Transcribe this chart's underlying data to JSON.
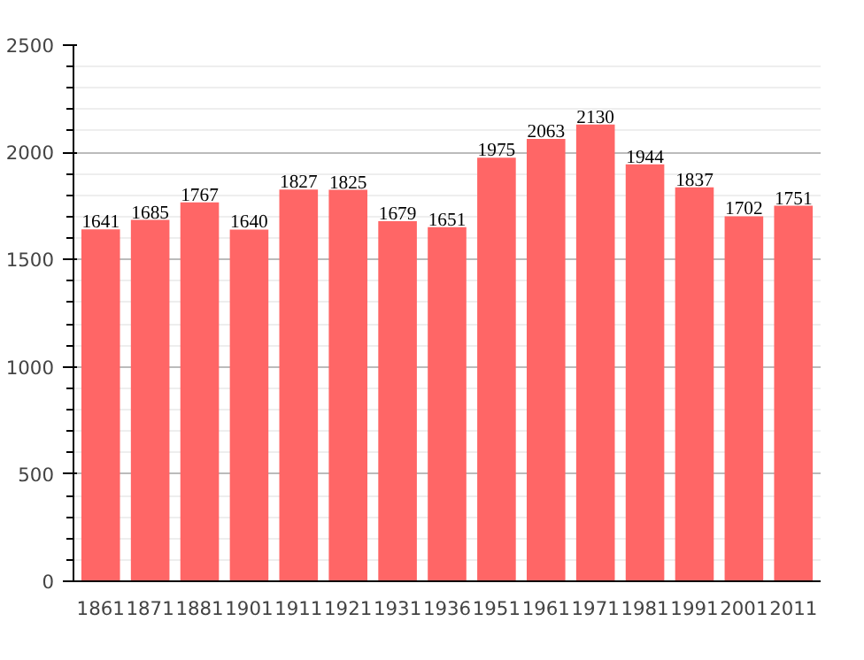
{
  "chart_data": {
    "type": "bar",
    "categories": [
      "1861",
      "1871",
      "1881",
      "1901",
      "1911",
      "1921",
      "1931",
      "1936",
      "1951",
      "1961",
      "1971",
      "1981",
      "1991",
      "2001",
      "2011"
    ],
    "values": [
      1641,
      1685,
      1767,
      1640,
      1827,
      1825,
      1679,
      1651,
      1975,
      2063,
      2130,
      1944,
      1837,
      1702,
      1751
    ],
    "color": "#ff6666",
    "ylim": [
      0,
      2500
    ],
    "yticks": [
      0,
      500,
      1000,
      1500,
      2000,
      2500
    ],
    "grid": "y",
    "data_labels": true
  }
}
